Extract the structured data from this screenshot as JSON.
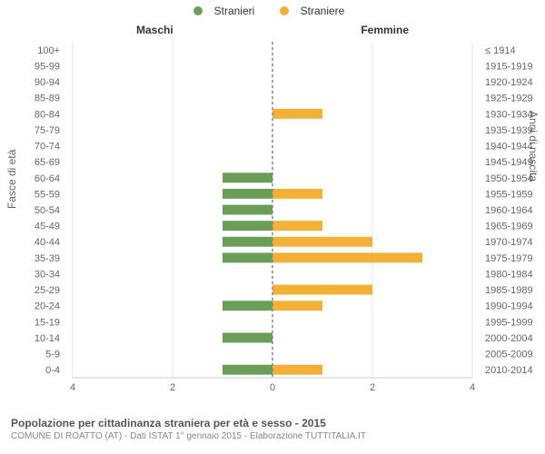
{
  "legend": {
    "male_label": "Stranieri",
    "female_label": "Straniere",
    "male_color": "#6a9e58",
    "female_color": "#f2b134"
  },
  "column_headers": {
    "left": "Maschi",
    "right": "Femmine"
  },
  "axes": {
    "left_title": "Fasce di età",
    "right_title": "Anni di nascita",
    "xmax": 4,
    "xticks": [
      4,
      2,
      0,
      0,
      2,
      4
    ]
  },
  "footer": {
    "title": "Popolazione per cittadinanza straniera per età e sesso - 2015",
    "subtitle": "COMUNE DI ROATTO (AT) - Dati ISTAT 1° gennaio 2015 - Elaborazione TUTTITALIA.IT"
  },
  "chart": {
    "type": "population-pyramid",
    "bar_height_ratio": 0.62,
    "male_color": "#6a9e58",
    "female_color": "#f2b134",
    "grid_color": "#e6e6e6",
    "center_color": "#888888",
    "background_color": "#ffffff",
    "label_fontsize": 11,
    "rows": [
      {
        "age": "100+",
        "birth": "≤ 1914",
        "m": 0,
        "f": 0
      },
      {
        "age": "95-99",
        "birth": "1915-1919",
        "m": 0,
        "f": 0
      },
      {
        "age": "90-94",
        "birth": "1920-1924",
        "m": 0,
        "f": 0
      },
      {
        "age": "85-89",
        "birth": "1925-1929",
        "m": 0,
        "f": 0
      },
      {
        "age": "80-84",
        "birth": "1930-1934",
        "m": 0,
        "f": 1
      },
      {
        "age": "75-79",
        "birth": "1935-1939",
        "m": 0,
        "f": 0
      },
      {
        "age": "70-74",
        "birth": "1940-1944",
        "m": 0,
        "f": 0
      },
      {
        "age": "65-69",
        "birth": "1945-1949",
        "m": 0,
        "f": 0
      },
      {
        "age": "60-64",
        "birth": "1950-1954",
        "m": 1,
        "f": 0
      },
      {
        "age": "55-59",
        "birth": "1955-1959",
        "m": 1,
        "f": 1
      },
      {
        "age": "50-54",
        "birth": "1960-1964",
        "m": 1,
        "f": 0
      },
      {
        "age": "45-49",
        "birth": "1965-1969",
        "m": 1,
        "f": 1
      },
      {
        "age": "40-44",
        "birth": "1970-1974",
        "m": 1,
        "f": 2
      },
      {
        "age": "35-39",
        "birth": "1975-1979",
        "m": 1,
        "f": 3
      },
      {
        "age": "30-34",
        "birth": "1980-1984",
        "m": 0,
        "f": 0
      },
      {
        "age": "25-29",
        "birth": "1985-1989",
        "m": 0,
        "f": 2
      },
      {
        "age": "20-24",
        "birth": "1990-1994",
        "m": 1,
        "f": 1
      },
      {
        "age": "15-19",
        "birth": "1995-1999",
        "m": 0,
        "f": 0
      },
      {
        "age": "10-14",
        "birth": "2000-2004",
        "m": 1,
        "f": 0
      },
      {
        "age": "5-9",
        "birth": "2005-2009",
        "m": 0,
        "f": 0
      },
      {
        "age": "0-4",
        "birth": "2010-2014",
        "m": 1,
        "f": 1
      }
    ]
  }
}
